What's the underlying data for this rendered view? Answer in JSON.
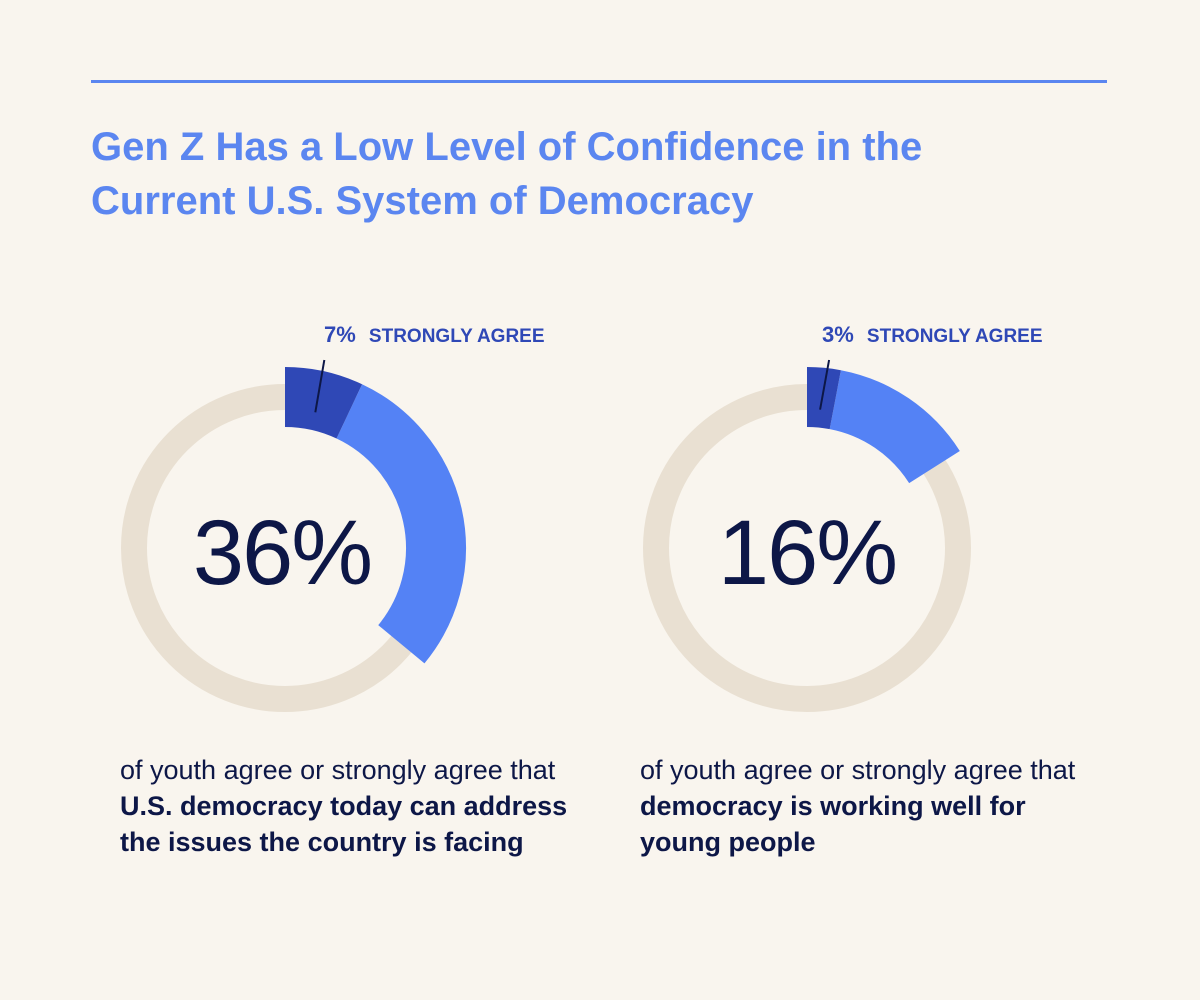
{
  "title": {
    "line1": "Gen Z Has a Low Level of Confidence in the",
    "line2": "Current U.S. System of Democracy"
  },
  "colors": {
    "title": "#5b86f0",
    "agree": "#5482f5",
    "strongly_agree": "#2f48b6",
    "track": "#e9e0d2",
    "text": "#0d1747",
    "background": "#f9f5ee"
  },
  "chart_data": [
    {
      "type": "pie",
      "variant": "donut",
      "total_value": 36,
      "total_label": "36%",
      "segments": [
        {
          "name": "Strongly agree",
          "value": 7
        },
        {
          "name": "Agree",
          "value": 29
        }
      ],
      "callout": {
        "value": "7%",
        "label": "STRONGLY AGREE"
      },
      "caption": {
        "plain": "of youth agree or strongly agree that ",
        "bold": "U.S. democracy today can address the issues the country is facing"
      }
    },
    {
      "type": "pie",
      "variant": "donut",
      "total_value": 16,
      "total_label": "16%",
      "segments": [
        {
          "name": "Strongly agree",
          "value": 3
        },
        {
          "name": "Agree",
          "value": 13
        }
      ],
      "callout": {
        "value": "3%",
        "label": "STRONGLY AGREE"
      },
      "caption": {
        "plain": "of youth agree or strongly agree that ",
        "bold": "democracy is working well for young people"
      }
    }
  ]
}
